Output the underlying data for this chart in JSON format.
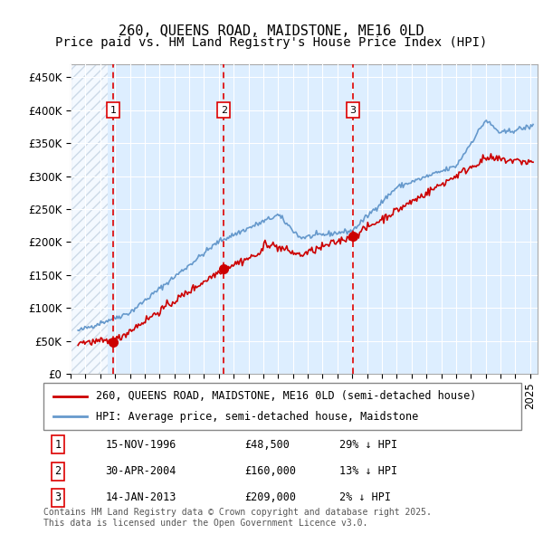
{
  "title": "260, QUEENS ROAD, MAIDSTONE, ME16 0LD",
  "subtitle": "Price paid vs. HM Land Registry's House Price Index (HPI)",
  "ylabel_ticks": [
    "£0",
    "£50K",
    "£100K",
    "£150K",
    "£200K",
    "£250K",
    "£300K",
    "£350K",
    "£400K",
    "£450K"
  ],
  "ytick_values": [
    0,
    50000,
    100000,
    150000,
    200000,
    250000,
    300000,
    350000,
    400000,
    450000
  ],
  "ylim": [
    0,
    470000
  ],
  "xlim_start": 1994.0,
  "xlim_end": 2025.5,
  "sale_dates": [
    1996.87,
    2004.33,
    2013.04
  ],
  "sale_prices": [
    48500,
    160000,
    209000
  ],
  "sale_labels": [
    "1",
    "2",
    "3"
  ],
  "vline_color": "#dd0000",
  "plot_bg": "#ddeeff",
  "hatch_color": "#bbccdd",
  "red_line_color": "#cc0000",
  "blue_line_color": "#6699cc",
  "legend_red_label": "260, QUEENS ROAD, MAIDSTONE, ME16 0LD (semi-detached house)",
  "legend_blue_label": "HPI: Average price, semi-detached house, Maidstone",
  "table_data": [
    [
      "1",
      "15-NOV-1996",
      "£48,500",
      "29% ↓ HPI"
    ],
    [
      "2",
      "30-APR-2004",
      "£160,000",
      "13% ↓ HPI"
    ],
    [
      "3",
      "14-JAN-2013",
      "£209,000",
      "2% ↓ HPI"
    ]
  ],
  "footnote": "Contains HM Land Registry data © Crown copyright and database right 2025.\nThis data is licensed under the Open Government Licence v3.0.",
  "grid_color": "#ffffff",
  "title_fontsize": 11,
  "subtitle_fontsize": 10,
  "tick_fontsize": 8.5
}
